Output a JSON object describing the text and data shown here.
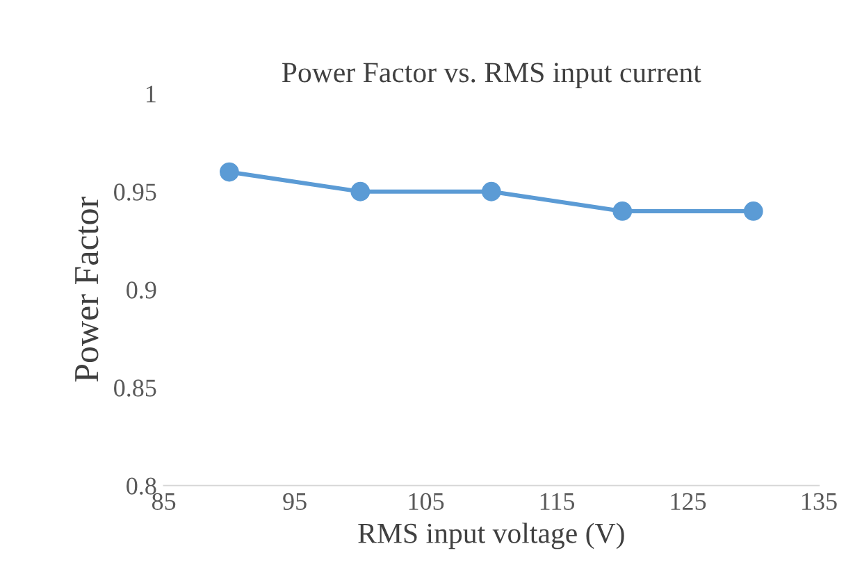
{
  "chart_data": {
    "type": "line",
    "title": "Power Factor vs. RMS input current",
    "xlabel": "RMS input voltage (V)",
    "ylabel": "Power Factor",
    "x": [
      90,
      100,
      110,
      120,
      130
    ],
    "series": [
      {
        "color": "#5b9bd5",
        "values": [
          0.96,
          0.95,
          0.95,
          0.94,
          0.94
        ]
      }
    ],
    "xlim": [
      85,
      135
    ],
    "xticks": [
      85,
      95,
      105,
      115,
      125,
      135
    ],
    "ylim": [
      0.8,
      1
    ],
    "yticks": [
      0.8,
      0.85,
      0.9,
      0.95,
      1
    ],
    "grid": false,
    "legend": false,
    "marker": "circle",
    "line_style": "solid"
  }
}
